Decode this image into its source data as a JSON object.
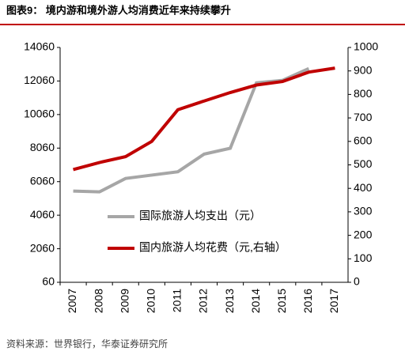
{
  "chart_data": {
    "type": "line",
    "title": "图表9： 境内游和境外游人均消费近年来持续攀升",
    "source": "资料来源：世界银行，华泰证券研究所",
    "categories": [
      "2007",
      "2008",
      "2009",
      "2010",
      "2011",
      "2012",
      "2013",
      "2014",
      "2015",
      "2016",
      "2017"
    ],
    "series": [
      {
        "name": "国际旅游人均支出（元）",
        "color": "#a6a6a6",
        "axis": "y",
        "values": [
          5500,
          5450,
          6250,
          6450,
          6650,
          7700,
          8050,
          11950,
          12100,
          12800,
          null
        ]
      },
      {
        "name": "国内旅游人均花费（元,右轴）",
        "color": "#c00000",
        "axis": "y2",
        "values": [
          480,
          510,
          535,
          600,
          735,
          772,
          808,
          840,
          855,
          895,
          912
        ]
      }
    ],
    "ylim": [
      60,
      14060
    ],
    "yticks": [
      60,
      2060,
      4060,
      6060,
      8060,
      10060,
      12060,
      14060
    ],
    "y2lim": [
      0,
      1000
    ],
    "y2ticks": [
      0,
      100,
      200,
      300,
      400,
      500,
      600,
      700,
      800,
      900,
      1000
    ]
  }
}
